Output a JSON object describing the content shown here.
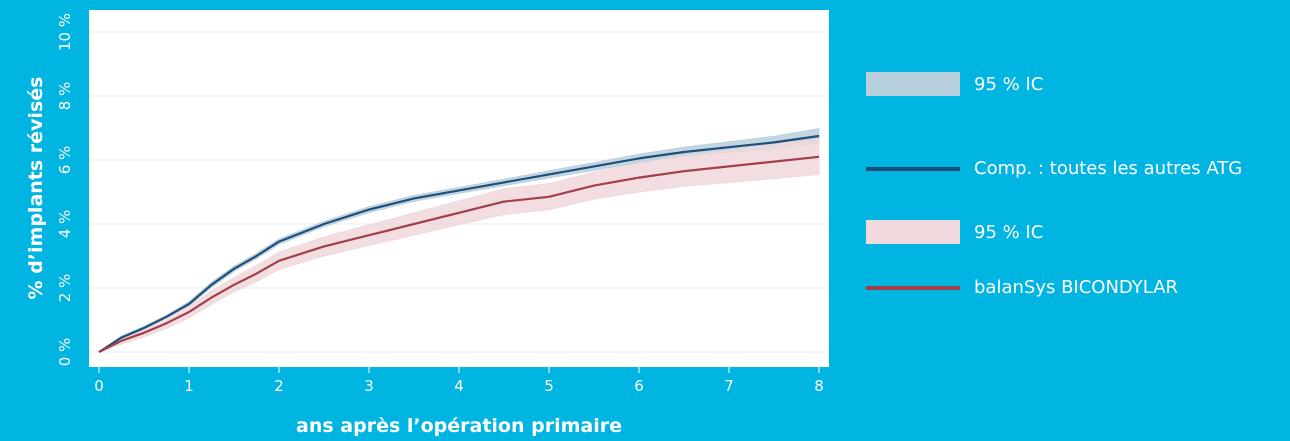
{
  "chart_data": {
    "type": "line",
    "xlabel": "ans après l’opération primaire",
    "ylabel": "% d’implants révisés",
    "xlim": [
      0,
      8.1
    ],
    "ylim": [
      0,
      10
    ],
    "x_ticks": [
      "0",
      "1",
      "2",
      "3",
      "4",
      "5",
      "6",
      "7",
      "8"
    ],
    "y_ticks": [
      "0 %",
      "2 %",
      "4 %",
      "6 %",
      "8 %",
      "10 %"
    ],
    "grid": "horizontal",
    "legend_position": "right",
    "series": [
      {
        "name": "Comp. : toutes les autres ATG",
        "color": "#1f4e79",
        "band_color": "#b9d0de",
        "band_label": "95 % IC",
        "x": [
          0,
          0.25,
          0.5,
          0.75,
          1.0,
          1.25,
          1.5,
          1.75,
          2.0,
          2.5,
          3.0,
          3.5,
          4.0,
          4.5,
          5.0,
          5.5,
          6.0,
          6.5,
          7.0,
          7.5,
          8.0
        ],
        "y": [
          0,
          0.45,
          0.75,
          1.1,
          1.5,
          2.1,
          2.6,
          3.0,
          3.45,
          4.0,
          4.45,
          4.8,
          5.05,
          5.3,
          5.55,
          5.8,
          6.05,
          6.25,
          6.4,
          6.55,
          6.75
        ],
        "lower": [
          0,
          0.4,
          0.7,
          1.05,
          1.45,
          2.02,
          2.52,
          2.92,
          3.37,
          3.92,
          4.36,
          4.71,
          4.96,
          5.2,
          5.44,
          5.68,
          5.92,
          6.1,
          6.23,
          6.36,
          6.52
        ],
        "upper": [
          0,
          0.5,
          0.8,
          1.15,
          1.57,
          2.18,
          2.68,
          3.08,
          3.53,
          4.08,
          4.54,
          4.89,
          5.14,
          5.4,
          5.66,
          5.92,
          6.18,
          6.4,
          6.57,
          6.74,
          6.98
        ]
      },
      {
        "name": "balanSys BICONDYLAR",
        "color": "#a33e4d",
        "band_color": "#f0d8dc",
        "band_label": "95 % IC",
        "x": [
          0,
          0.25,
          0.5,
          0.75,
          1.0,
          1.25,
          1.5,
          1.75,
          2.0,
          2.5,
          3.0,
          3.5,
          4.0,
          4.5,
          5.0,
          5.5,
          6.0,
          6.5,
          7.0,
          7.5,
          8.0
        ],
        "y": [
          0,
          0.35,
          0.6,
          0.9,
          1.25,
          1.7,
          2.1,
          2.45,
          2.85,
          3.3,
          3.65,
          4.0,
          4.35,
          4.7,
          4.85,
          5.2,
          5.45,
          5.65,
          5.8,
          5.95,
          6.1
        ],
        "lower": [
          0,
          0.25,
          0.47,
          0.74,
          1.07,
          1.49,
          1.88,
          2.2,
          2.58,
          3.0,
          3.33,
          3.65,
          3.98,
          4.3,
          4.45,
          4.78,
          5.0,
          5.18,
          5.3,
          5.42,
          5.55
        ],
        "upper": [
          0,
          0.45,
          0.73,
          1.06,
          1.43,
          1.91,
          2.32,
          2.7,
          3.12,
          3.6,
          3.97,
          4.35,
          4.72,
          5.1,
          5.26,
          5.62,
          5.9,
          6.12,
          6.3,
          6.48,
          6.65
        ]
      }
    ]
  },
  "legend": {
    "items": [
      {
        "kind": "band",
        "label": "95 % IC",
        "color": "#b9d0de"
      },
      {
        "kind": "line",
        "label": "Comp. : toutes les autres ATG",
        "color": "#1f4e79"
      },
      {
        "kind": "band",
        "label": "95 % IC",
        "color": "#f0d8dc"
      },
      {
        "kind": "line",
        "label": "balanSys BICONDYLAR",
        "color": "#a33e4d"
      }
    ]
  }
}
